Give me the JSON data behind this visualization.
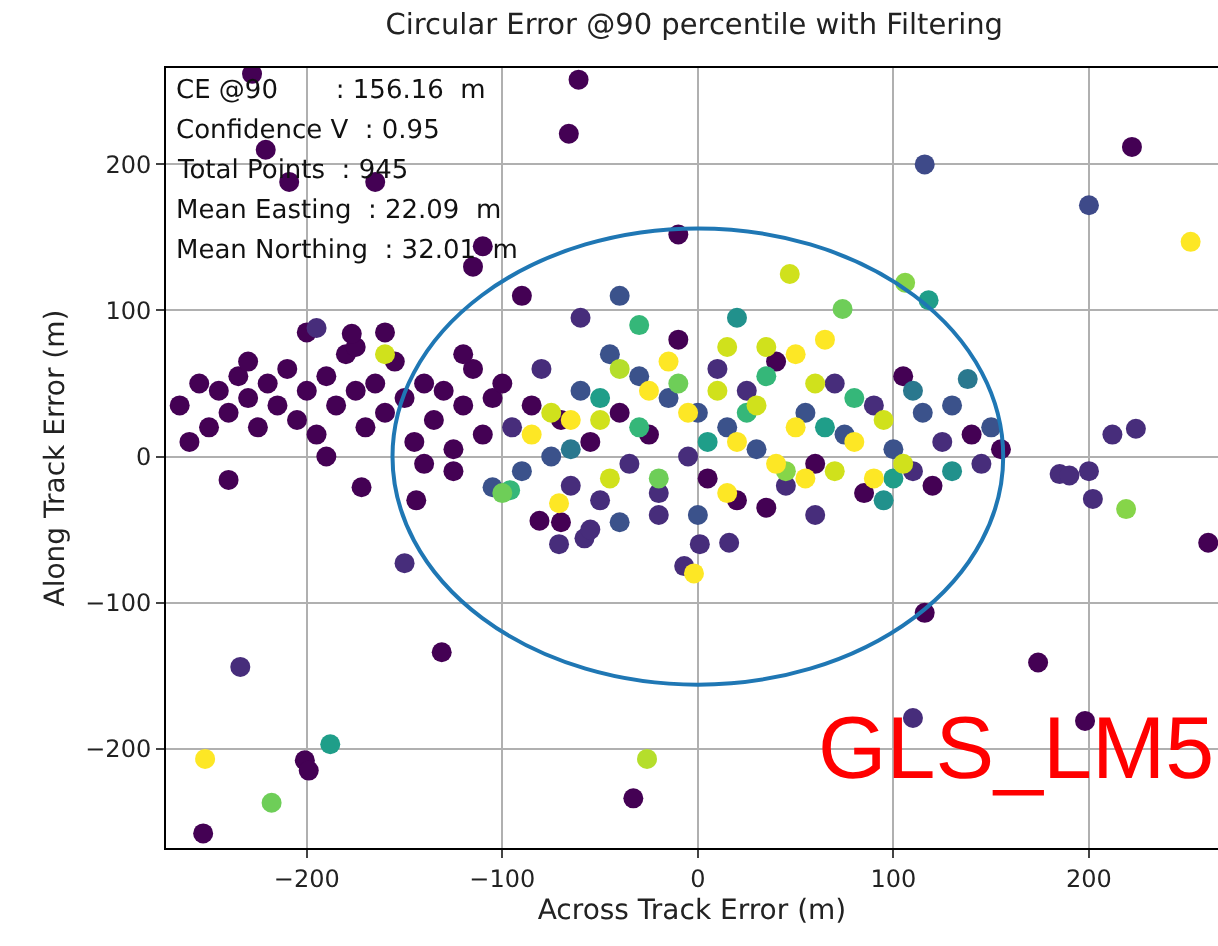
{
  "chart_data": {
    "type": "scatter",
    "title": "Circular Error @90 percentile with Filtering",
    "xlabel": "Across Track Error (m)",
    "ylabel": "Along Track Error (m)",
    "xlim": [
      -272,
      266
    ],
    "ylim": [
      -268,
      266
    ],
    "xticks": [
      -200,
      -100,
      0,
      100,
      200
    ],
    "yticks": [
      -200,
      -100,
      0,
      100,
      200
    ],
    "grid": true,
    "marker": "circle",
    "annotations": [
      "CE @90       : 156.16  m",
      "Confidence V  : 0.95",
      "Total Points  : 945",
      "Mean Easting  : 22.09  m",
      "Mean Northing  : 32.01  m",
      "GLS_LM5"
    ],
    "series": [
      {
        "type": "scatter",
        "x": [
          -228,
          -221,
          -209,
          -165,
          -61,
          -66,
          -115,
          -110,
          -10,
          116,
          200,
          222,
          252,
          47,
          74,
          106,
          118,
          138,
          212,
          224,
          185,
          190,
          200,
          202,
          219,
          261,
          1,
          16,
          -7,
          -2,
          116,
          174,
          198,
          110,
          -240,
          -172,
          -144,
          -105,
          -96,
          -150,
          -131,
          -234,
          -188,
          -252,
          -201,
          -199,
          -218,
          -253,
          -26,
          -33,
          -71,
          -58,
          -81,
          -265,
          -255,
          -250,
          -245,
          -240,
          -235,
          -230,
          -225,
          -220,
          -215,
          -210,
          -205,
          -200,
          -195,
          -190,
          -185,
          -180,
          -175,
          -170,
          -165,
          -160,
          -155,
          -150,
          -145,
          -140,
          -135,
          -130,
          -125,
          -120,
          -115,
          -110,
          -105,
          -200,
          -175,
          -160,
          -260,
          -230,
          -190,
          -140,
          -120,
          -125,
          -160,
          -195,
          -177,
          -100,
          -95,
          -90,
          -85,
          -80,
          -75,
          -70,
          -65,
          -60,
          -55,
          -50,
          -45,
          -40,
          -35,
          -30,
          -25,
          -20,
          -15,
          -10,
          -5,
          0,
          5,
          10,
          15,
          20,
          25,
          30,
          40,
          45,
          55,
          60,
          70,
          75,
          85,
          90,
          100,
          105,
          110,
          115,
          120,
          125,
          130,
          140,
          145,
          150,
          155,
          -60,
          -40,
          -70,
          -55,
          -40,
          -90,
          -20,
          0,
          35,
          60,
          95,
          110,
          -30,
          20,
          -100,
          -50,
          -30,
          -10,
          5,
          25,
          45,
          65,
          80,
          -65,
          -20,
          35,
          100,
          130,
          -40,
          15,
          -75,
          50,
          -45,
          -71,
          -85,
          -50,
          -25,
          -5,
          10,
          20,
          30,
          40,
          50,
          60,
          70,
          80,
          90,
          95,
          105,
          -15,
          55,
          15,
          -65,
          35,
          65
        ],
        "values": [
          262,
          210,
          188,
          188,
          258,
          221,
          130,
          144,
          152,
          200,
          172,
          212,
          147,
          125,
          101,
          119,
          107,
          53,
          15,
          19,
          -12,
          -13,
          -10,
          -29,
          -36,
          -59,
          -60,
          -59,
          -75,
          -80,
          -107,
          -141,
          -181,
          -179,
          -16,
          -21,
          -30,
          -21,
          -23,
          -73,
          -134,
          -144,
          -197,
          -207,
          -208,
          -215,
          -237,
          -258,
          -207,
          -234,
          -60,
          -56,
          -44,
          35,
          50,
          20,
          45,
          30,
          55,
          40,
          20,
          50,
          35,
          60,
          25,
          45,
          15,
          55,
          35,
          70,
          45,
          20,
          50,
          30,
          65,
          40,
          10,
          50,
          25,
          45,
          5,
          35,
          60,
          15,
          40,
          85,
          75,
          85,
          10,
          65,
          0,
          -5,
          70,
          -10,
          70,
          88,
          84,
          50,
          20,
          -10,
          35,
          60,
          0,
          25,
          -20,
          45,
          10,
          -30,
          70,
          30,
          -5,
          55,
          15,
          -25,
          40,
          80,
          0,
          30,
          -15,
          60,
          20,
          -30,
          45,
          5,
          65,
          -20,
          30,
          -5,
          50,
          15,
          -25,
          35,
          5,
          55,
          -10,
          30,
          -20,
          10,
          35,
          15,
          -5,
          20,
          5,
          95,
          110,
          -45,
          -50,
          -45,
          110,
          -40,
          -40,
          -35,
          -40,
          -30,
          45,
          90,
          95,
          -25,
          40,
          20,
          50,
          10,
          30,
          -10,
          20,
          40,
          5,
          -15,
          55,
          -15,
          -10,
          60,
          -25,
          30,
          70,
          -15,
          -32,
          15,
          25,
          45,
          30,
          45,
          10,
          35,
          -5,
          20,
          50,
          -10,
          10,
          -15,
          25,
          -5,
          65,
          -15,
          75,
          25,
          75,
          80
        ],
        "colors": [
          "#440154",
          "#440154",
          "#440154",
          "#440154",
          "#440154",
          "#440154",
          "#440154",
          "#440154",
          "#440154",
          "#3e4a89",
          "#3e4a89",
          "#440154",
          "#fde725",
          "#d0e11c",
          "#6ece58",
          "#86d549",
          "#1f9e89",
          "#2a788e",
          "#472d7b",
          "#472d7b",
          "#472d7b",
          "#472d7b",
          "#472d7b",
          "#472d7b",
          "#86d549",
          "#440154",
          "#472d7b",
          "#472d7b",
          "#472d7b",
          "#fde725",
          "#440154",
          "#440154",
          "#440154",
          "#472d7b",
          "#440154",
          "#440154",
          "#440154",
          "#3b528b",
          "#35b779",
          "#472d7b",
          "#440154",
          "#472d7b",
          "#1f9e89",
          "#fde725",
          "#440154",
          "#440154",
          "#6ece58",
          "#440154",
          "#b5de2b",
          "#440154",
          "#472d7b",
          "#472d7b",
          "#440154",
          "#440154",
          "#440154",
          "#440154",
          "#440154",
          "#440154",
          "#440154",
          "#440154",
          "#440154",
          "#440154",
          "#440154",
          "#440154",
          "#440154",
          "#440154",
          "#440154",
          "#440154",
          "#440154",
          "#440154",
          "#440154",
          "#440154",
          "#440154",
          "#440154",
          "#440154",
          "#440154",
          "#440154",
          "#440154",
          "#440154",
          "#440154",
          "#440154",
          "#440154",
          "#440154",
          "#440154",
          "#440154",
          "#440154",
          "#440154",
          "#440154",
          "#440154",
          "#440154",
          "#440154",
          "#440154",
          "#440154",
          "#440154",
          "#d0e11c",
          "#472d7b",
          "#440154",
          "#440154",
          "#472d7b",
          "#3b528b",
          "#440154",
          "#472d7b",
          "#3b528b",
          "#440154",
          "#472d7b",
          "#3b528b",
          "#440154",
          "#472d7b",
          "#3b528b",
          "#440154",
          "#472d7b",
          "#3b528b",
          "#440154",
          "#472d7b",
          "#3b528b",
          "#440154",
          "#472d7b",
          "#3b528b",
          "#440154",
          "#472d7b",
          "#3b528b",
          "#440154",
          "#472d7b",
          "#3b528b",
          "#440154",
          "#472d7b",
          "#3b528b",
          "#440154",
          "#472d7b",
          "#3b528b",
          "#440154",
          "#472d7b",
          "#3b528b",
          "#440154",
          "#472d7b",
          "#3b528b",
          "#440154",
          "#472d7b",
          "#3b528b",
          "#440154",
          "#472d7b",
          "#3b528b",
          "#440154",
          "#472d7b",
          "#3b528b",
          "#440154",
          "#472d7b",
          "#3b528b",
          "#440154",
          "#472d7b",
          "#3b528b",
          "#440154",
          "#472d7b",
          "#21918c",
          "#2a788e",
          "#35b779",
          "#21918c",
          "#6ece58",
          "#1f9e89",
          "#35b779",
          "#6ece58",
          "#1f9e89",
          "#35b779",
          "#86d549",
          "#1f9e89",
          "#35b779",
          "#2a788e",
          "#6ece58",
          "#35b779",
          "#1f9e89",
          "#21918c",
          "#b5de2b",
          "#fde725",
          "#d0e11c",
          "#fde725",
          "#d0e11c",
          "#fde725",
          "#fde725",
          "#d0e11c",
          "#fde725",
          "#fde725",
          "#d0e11c",
          "#fde725",
          "#d0e11c",
          "#fde725",
          "#fde725",
          "#d0e11c",
          "#d0e11c",
          "#fde725",
          "#fde725",
          "#d0e11c",
          "#d0e11c",
          "#fde725",
          "#fde725",
          "#d0e11c",
          "#fde725",
          "#d0e11c",
          "#fde725"
        ]
      }
    ]
  }
}
